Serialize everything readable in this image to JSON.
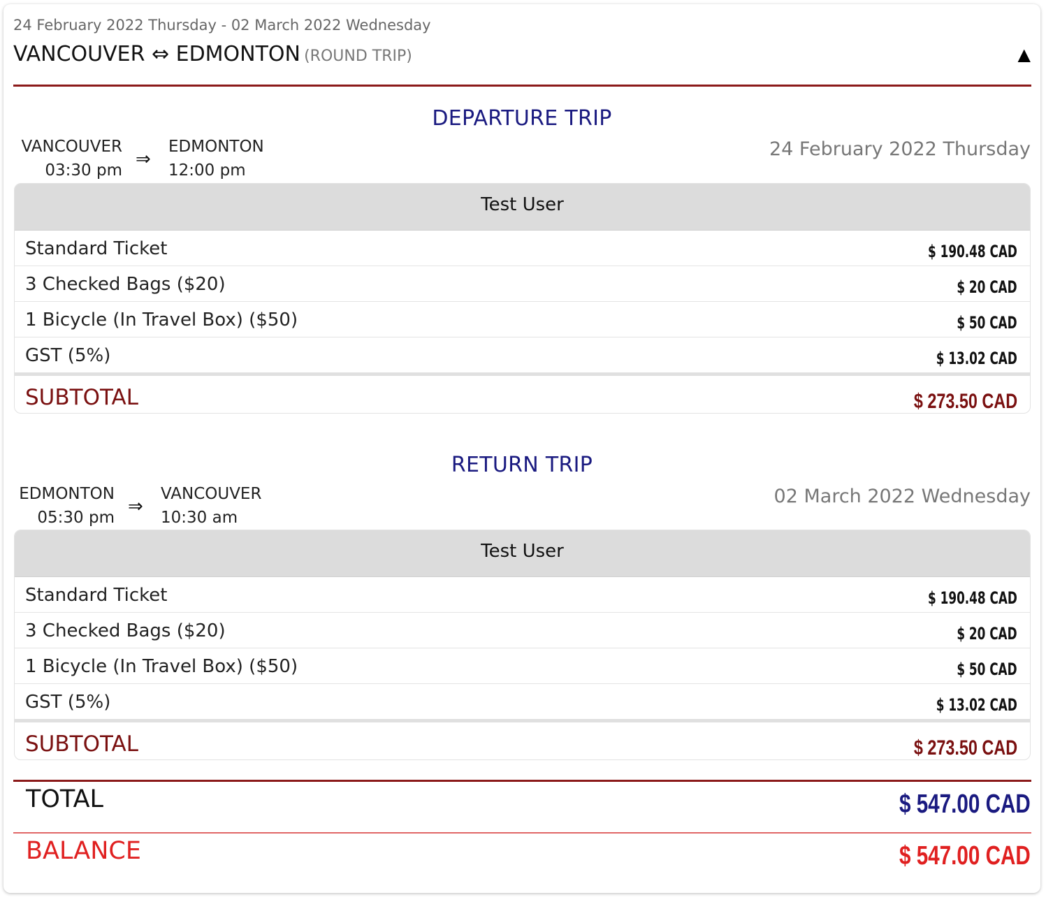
{
  "header": {
    "date_range": "24 February 2022 Thursday - 02 March 2022 Wednesday",
    "route": "VANCOUVER ⇔ EDMONTON",
    "trip_type": "(ROUND TRIP)",
    "collapse_icon": "▲"
  },
  "departure": {
    "title": "DEPARTURE TRIP",
    "from_city": "VANCOUVER",
    "from_time": "03:30 pm",
    "arrow": "⇒",
    "to_city": "EDMONTON",
    "to_time": "12:00 pm",
    "date": "24 February 2022 Thursday",
    "passenger": "Test User",
    "items": [
      {
        "label": "Standard Ticket",
        "amount": "$ 190.48 CAD"
      },
      {
        "label": "3 Checked Bags ($20)",
        "amount": "$ 20 CAD"
      },
      {
        "label": "1 Bicycle (In Travel Box) ($50)",
        "amount": "$ 50 CAD"
      },
      {
        "label": "GST (5%)",
        "amount": "$ 13.02 CAD"
      }
    ],
    "subtotal_label": "SUBTOTAL",
    "subtotal_amount": "$ 273.50 CAD"
  },
  "return": {
    "title": "RETURN TRIP",
    "from_city": "EDMONTON",
    "from_time": "05:30 pm",
    "arrow": "⇒",
    "to_city": "VANCOUVER",
    "to_time": "10:30 am",
    "date": "02 March 2022 Wednesday",
    "passenger": "Test User",
    "items": [
      {
        "label": "Standard Ticket",
        "amount": "$ 190.48 CAD"
      },
      {
        "label": "3 Checked Bags ($20)",
        "amount": "$ 20 CAD"
      },
      {
        "label": "1 Bicycle (In Travel Box) ($50)",
        "amount": "$ 50 CAD"
      },
      {
        "label": "GST (5%)",
        "amount": "$ 13.02 CAD"
      }
    ],
    "subtotal_label": "SUBTOTAL",
    "subtotal_amount": "$ 273.50 CAD"
  },
  "totals": {
    "total_label": "TOTAL",
    "total_amount": "$ 547.00 CAD",
    "balance_label": "BALANCE",
    "balance_amount": "$ 547.00 CAD"
  },
  "colors": {
    "accent_rule": "#8b1a1a",
    "trip_title": "#1a1a80",
    "subtotal": "#7a1010",
    "total": "#1a1a80",
    "balance": "#e02020"
  }
}
